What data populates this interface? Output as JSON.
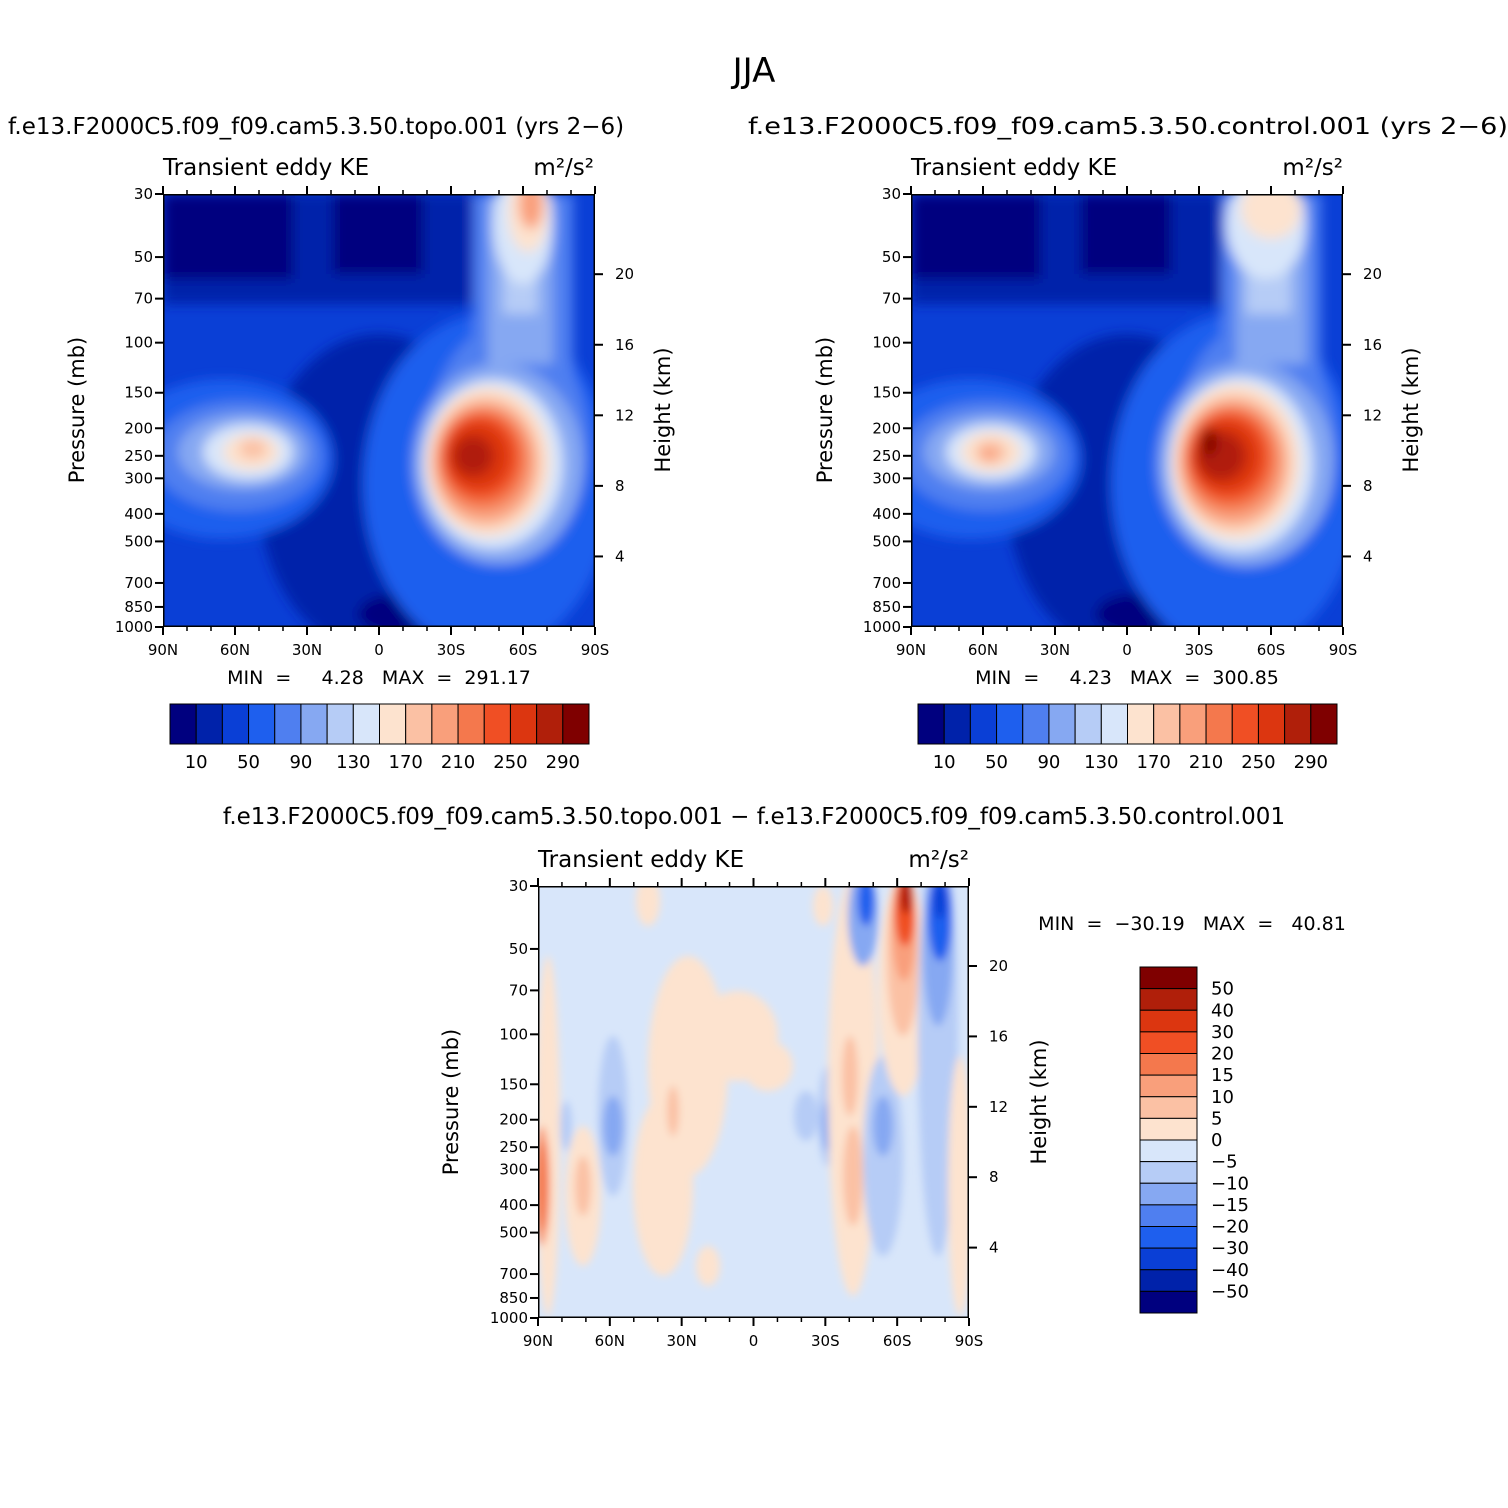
{
  "figure": {
    "suptitle": "JJA",
    "palette_blue_red": [
      "#00007f",
      "#0022aa",
      "#0a3fd6",
      "#1e5fee",
      "#4f7ff0",
      "#86a8f2",
      "#b6ccf6",
      "#d8e6fa",
      "#fde3cf",
      "#fbc1a4",
      "#f99f7b",
      "#f4784d",
      "#f04f24",
      "#dc3610",
      "#b01f0a",
      "#7f0000"
    ],
    "palette_diff": [
      "#00007f",
      "#0022aa",
      "#0a3fd6",
      "#1e5fee",
      "#4f7ff0",
      "#86a8f2",
      "#b6ccf6",
      "#d8e6fa",
      "#fde3cf",
      "#fbc1a4",
      "#f99f7b",
      "#f4784d",
      "#f04f24",
      "#dc3610",
      "#b01f0a",
      "#7f0000"
    ]
  },
  "panels": [
    {
      "title": "f.e13.F2000C5.f09_f09.cam5.3.50.topo.001  (yrs  2−6)",
      "left_label": "Transient  eddy  KE",
      "right_label": "m²/s²",
      "ylabel": "Pressure  (mb)",
      "y2label": "Height  (km)",
      "stats": "MIN  =     4.28   MAX  =  291.17",
      "colorbar_labels": [
        "10",
        "50",
        "90",
        "130",
        "170",
        "210",
        "250",
        "290"
      ]
    },
    {
      "title": "f.e13.F2000C5.f09_f09.cam5.3.50.control.001  (yrs  2−6)",
      "left_label": "Transient  eddy  KE",
      "right_label": "m²/s²",
      "ylabel": "Pressure  (mb)",
      "y2label": "Height  (km)",
      "stats": "MIN  =     4.23   MAX  =  300.85",
      "colorbar_labels": [
        "10",
        "50",
        "90",
        "130",
        "170",
        "210",
        "250",
        "290"
      ]
    },
    {
      "title": "f.e13.F2000C5.f09_f09.cam5.3.50.topo.001  −  f.e13.F2000C5.f09_f09.cam5.3.50.control.001",
      "left_label": "Transient  eddy  KE",
      "right_label": "m²/s²",
      "ylabel": "Pressure  (mb)",
      "y2label": "Height  (km)",
      "stats": "MIN  =  −30.19   MAX  =   40.81",
      "colorbar_labels": [
        "50",
        "40",
        "30",
        "20",
        "15",
        "10",
        "5",
        "0",
        "−5",
        "−10",
        "−15",
        "−20",
        "−30",
        "−40",
        "−50"
      ]
    }
  ],
  "chart_data": [
    {
      "type": "heatmap",
      "title": "f.e13.F2000C5.f09_f09.cam5.3.50.topo.001  (yrs  2−6)",
      "ylabel": "Pressure  (mb)",
      "y2label": "Height  (km)",
      "x_ticks": [
        "90N",
        "60N",
        "30N",
        "0",
        "30S",
        "60S",
        "90S"
      ],
      "y_ticks": [
        "30",
        "50",
        "70",
        "100",
        "150",
        "200",
        "250",
        "300",
        "400",
        "500",
        "700",
        "850",
        "1000"
      ],
      "y2_ticks": [
        "20",
        "16",
        "12",
        "8",
        "4"
      ],
      "y_scale": "log",
      "ylim": [
        1000,
        30
      ],
      "colorbar_levels": [
        10,
        30,
        50,
        70,
        90,
        110,
        130,
        150,
        170,
        190,
        210,
        230,
        250,
        270,
        290
      ],
      "min": 4.28,
      "max": 291.17,
      "features": [
        {
          "lat": -45,
          "p": 250,
          "value": 280
        },
        {
          "lat": 52,
          "p": 250,
          "value": 170
        },
        {
          "lat": -62,
          "p": 30,
          "value": 200
        }
      ]
    },
    {
      "type": "heatmap",
      "title": "f.e13.F2000C5.f09_f09.cam5.3.50.control.001  (yrs  2−6)",
      "ylabel": "Pressure  (mb)",
      "y2label": "Height  (km)",
      "x_ticks": [
        "90N",
        "60N",
        "30N",
        "0",
        "30S",
        "60S",
        "90S"
      ],
      "y_ticks": [
        "30",
        "50",
        "70",
        "100",
        "150",
        "200",
        "250",
        "300",
        "400",
        "500",
        "700",
        "850",
        "1000"
      ],
      "y2_ticks": [
        "20",
        "16",
        "12",
        "8",
        "4"
      ],
      "y_scale": "log",
      "ylim": [
        1000,
        30
      ],
      "colorbar_levels": [
        10,
        30,
        50,
        70,
        90,
        110,
        130,
        150,
        170,
        190,
        210,
        230,
        250,
        270,
        290
      ],
      "min": 4.23,
      "max": 300.85,
      "features": [
        {
          "lat": -45,
          "p": 250,
          "value": 290
        },
        {
          "lat": 55,
          "p": 260,
          "value": 180
        },
        {
          "lat": -55,
          "p": 30,
          "value": 175
        }
      ]
    },
    {
      "type": "heatmap",
      "title": "f.e13.F2000C5.f09_f09.cam5.3.50.topo.001  −  f.e13.F2000C5.f09_f09.cam5.3.50.control.001",
      "ylabel": "Pressure  (mb)",
      "y2label": "Height  (km)",
      "x_ticks": [
        "90N",
        "60N",
        "30N",
        "0",
        "30S",
        "60S",
        "90S"
      ],
      "y_ticks": [
        "30",
        "50",
        "70",
        "100",
        "150",
        "200",
        "250",
        "300",
        "400",
        "500",
        "700",
        "850",
        "1000"
      ],
      "y2_ticks": [
        "20",
        "16",
        "12",
        "8",
        "4"
      ],
      "y_scale": "log",
      "ylim": [
        1000,
        30
      ],
      "colorbar_levels": [
        50,
        40,
        30,
        20,
        15,
        10,
        5,
        0,
        -5,
        -10,
        -15,
        -20,
        -30,
        -40,
        -50
      ],
      "min": -30.19,
      "max": 40.81,
      "features": [
        {
          "lat": -60,
          "p": 35,
          "value": 30
        },
        {
          "lat": -72,
          "p": 35,
          "value": -30
        },
        {
          "lat": 89,
          "p": 320,
          "value": 15
        }
      ]
    }
  ]
}
